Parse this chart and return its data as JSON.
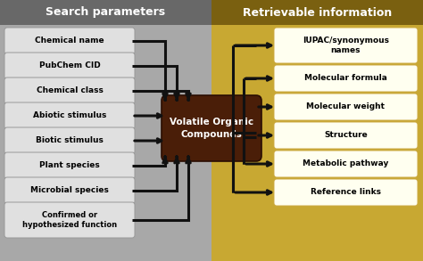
{
  "fig_width": 4.74,
  "fig_height": 2.93,
  "dpi": 100,
  "bg_left_color": "#a8a8a8",
  "bg_right_color": "#c8a832",
  "header_left_color": "#686868",
  "header_right_color": "#7a6010",
  "header_text_color": "#ffffff",
  "left_header": "Search parameters",
  "right_header": "Retrievable information",
  "left_boxes": [
    "Chemical name",
    "PubChem CID",
    "Chemical class",
    "Abiotic stimulus",
    "Biotic stimulus",
    "Plant species",
    "Microbial species",
    "Confirmed or\nhypothesized function"
  ],
  "right_boxes": [
    "IUPAC/synonymous\nnames",
    "Molecular formula",
    "Molecular weight",
    "Structure",
    "Metabolic pathway",
    "Reference links"
  ],
  "center_box_color": "#4a1e08",
  "center_text": "Volatile Organic\nCompounds",
  "center_text_color": "#ffffff",
  "left_box_color": "#e0e0e0",
  "right_box_color": "#fffff0",
  "box_text_color": "#000000",
  "arrow_color": "#111111",
  "arrow_lw": 2.2
}
